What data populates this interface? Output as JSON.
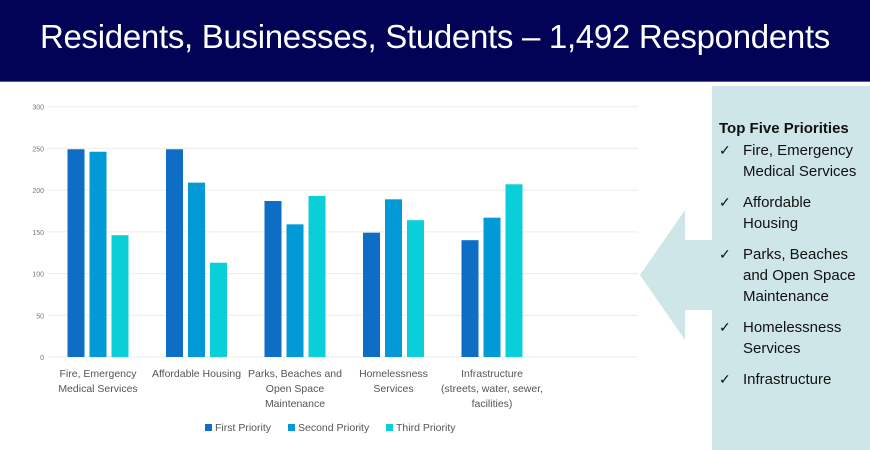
{
  "header": {
    "title": "Residents, Businesses, Students – 1,492 Respondents"
  },
  "colors": {
    "header_bg": "#020257",
    "panel_bg": "#cfe6e8",
    "first": "#0e6ec6",
    "second": "#029ad6",
    "third": "#0bcfd8"
  },
  "panel": {
    "title": "Top Five Priorities",
    "check_icon": "check-icon",
    "items": [
      {
        "label": "Fire, Emergency Medical Services"
      },
      {
        "label": "Affordable Housing"
      },
      {
        "label": "Parks, Beaches and Open Space Maintenance"
      },
      {
        "label": "Homelessness Services"
      },
      {
        "label": "Infrastructure"
      }
    ]
  },
  "chart_data": {
    "type": "bar",
    "categories": [
      [
        "Fire, Emergency",
        "Medical Services"
      ],
      [
        "Affordable Housing"
      ],
      [
        "Parks, Beaches and",
        "Open Space",
        "Maintenance"
      ],
      [
        "Homelessness",
        "Services"
      ],
      [
        "Infrastructure",
        "(streets, water, sewer,",
        "facilities)"
      ]
    ],
    "series": [
      {
        "name": "First Priority",
        "values": [
          249,
          249,
          187,
          149,
          140
        ]
      },
      {
        "name": "Second Priority",
        "values": [
          246,
          209,
          159,
          189,
          167
        ]
      },
      {
        "name": "Third Priority",
        "values": [
          146,
          113,
          193,
          164,
          207
        ]
      }
    ],
    "yticks": [
      0,
      50,
      100,
      150,
      200,
      250,
      300
    ],
    "ylim": [
      0,
      300
    ],
    "grid": true,
    "legend": "bottom"
  }
}
